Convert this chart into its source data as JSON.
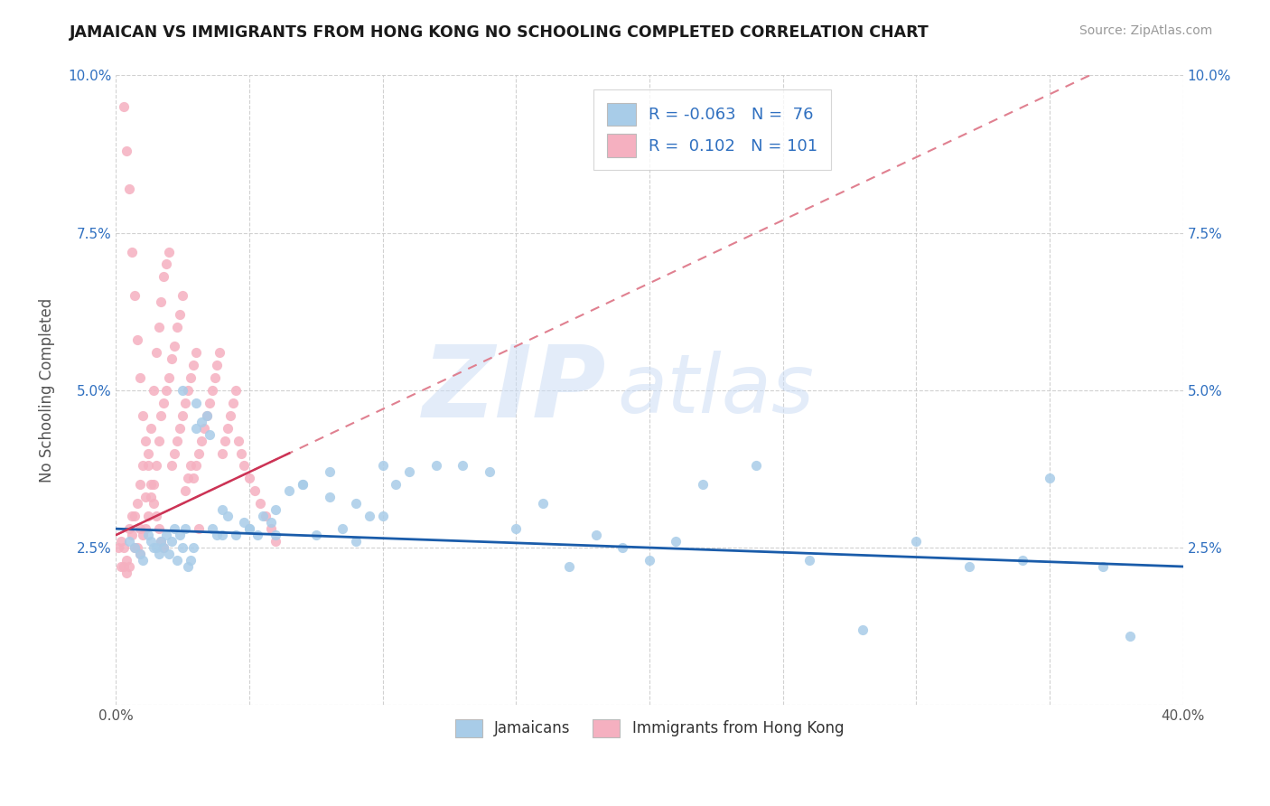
{
  "title": "JAMAICAN VS IMMIGRANTS FROM HONG KONG NO SCHOOLING COMPLETED CORRELATION CHART",
  "source": "Source: ZipAtlas.com",
  "ylabel": "No Schooling Completed",
  "xlim": [
    0.0,
    0.4
  ],
  "ylim": [
    0.0,
    0.1
  ],
  "legend_label1": "Jamaicans",
  "legend_label2": "Immigrants from Hong Kong",
  "r1": "-0.063",
  "n1": "76",
  "r2": "0.102",
  "n2": "101",
  "color_blue": "#a8cce8",
  "color_pink": "#f5b0c0",
  "line_blue": "#1a5caa",
  "line_pink": "#cc3355",
  "line_pink_dashed": "#e08090",
  "blue_x": [
    0.005,
    0.007,
    0.009,
    0.01,
    0.012,
    0.013,
    0.014,
    0.015,
    0.016,
    0.017,
    0.018,
    0.019,
    0.02,
    0.021,
    0.022,
    0.023,
    0.024,
    0.025,
    0.026,
    0.027,
    0.028,
    0.029,
    0.03,
    0.032,
    0.034,
    0.036,
    0.038,
    0.04,
    0.042,
    0.045,
    0.048,
    0.05,
    0.053,
    0.055,
    0.058,
    0.06,
    0.065,
    0.07,
    0.075,
    0.08,
    0.085,
    0.09,
    0.095,
    0.1,
    0.105,
    0.11,
    0.12,
    0.13,
    0.14,
    0.15,
    0.16,
    0.17,
    0.18,
    0.19,
    0.2,
    0.21,
    0.22,
    0.24,
    0.26,
    0.28,
    0.3,
    0.32,
    0.34,
    0.35,
    0.37,
    0.38,
    0.025,
    0.03,
    0.035,
    0.04,
    0.05,
    0.06,
    0.07,
    0.08,
    0.09,
    0.1
  ],
  "blue_y": [
    0.026,
    0.025,
    0.024,
    0.023,
    0.027,
    0.026,
    0.025,
    0.025,
    0.024,
    0.026,
    0.025,
    0.027,
    0.024,
    0.026,
    0.028,
    0.023,
    0.027,
    0.025,
    0.028,
    0.022,
    0.023,
    0.025,
    0.048,
    0.045,
    0.046,
    0.028,
    0.027,
    0.027,
    0.03,
    0.027,
    0.029,
    0.028,
    0.027,
    0.03,
    0.029,
    0.027,
    0.034,
    0.035,
    0.027,
    0.033,
    0.028,
    0.032,
    0.03,
    0.038,
    0.035,
    0.037,
    0.038,
    0.038,
    0.037,
    0.028,
    0.032,
    0.022,
    0.027,
    0.025,
    0.023,
    0.026,
    0.035,
    0.038,
    0.023,
    0.012,
    0.026,
    0.022,
    0.023,
    0.036,
    0.022,
    0.011,
    0.05,
    0.044,
    0.043,
    0.031,
    0.028,
    0.031,
    0.035,
    0.037,
    0.026,
    0.03
  ],
  "pink_x": [
    0.001,
    0.002,
    0.002,
    0.003,
    0.003,
    0.004,
    0.004,
    0.005,
    0.005,
    0.006,
    0.006,
    0.007,
    0.007,
    0.008,
    0.008,
    0.009,
    0.009,
    0.009,
    0.01,
    0.01,
    0.011,
    0.011,
    0.012,
    0.012,
    0.013,
    0.013,
    0.014,
    0.014,
    0.015,
    0.015,
    0.016,
    0.016,
    0.017,
    0.017,
    0.018,
    0.018,
    0.019,
    0.019,
    0.02,
    0.02,
    0.021,
    0.021,
    0.022,
    0.022,
    0.023,
    0.023,
    0.024,
    0.024,
    0.025,
    0.025,
    0.026,
    0.026,
    0.027,
    0.027,
    0.028,
    0.028,
    0.029,
    0.029,
    0.03,
    0.03,
    0.031,
    0.031,
    0.032,
    0.033,
    0.034,
    0.035,
    0.036,
    0.037,
    0.038,
    0.039,
    0.04,
    0.041,
    0.042,
    0.043,
    0.044,
    0.045,
    0.046,
    0.047,
    0.048,
    0.05,
    0.052,
    0.054,
    0.056,
    0.058,
    0.06,
    0.003,
    0.004,
    0.005,
    0.006,
    0.007,
    0.008,
    0.009,
    0.01,
    0.011,
    0.012,
    0.013,
    0.014,
    0.015,
    0.016,
    0.017,
    0.018
  ],
  "pink_y": [
    0.025,
    0.026,
    0.022,
    0.025,
    0.022,
    0.023,
    0.021,
    0.028,
    0.022,
    0.03,
    0.027,
    0.03,
    0.025,
    0.032,
    0.025,
    0.035,
    0.028,
    0.024,
    0.038,
    0.027,
    0.033,
    0.028,
    0.04,
    0.03,
    0.044,
    0.033,
    0.05,
    0.035,
    0.056,
    0.038,
    0.06,
    0.042,
    0.064,
    0.046,
    0.068,
    0.048,
    0.07,
    0.05,
    0.072,
    0.052,
    0.055,
    0.038,
    0.057,
    0.04,
    0.06,
    0.042,
    0.062,
    0.044,
    0.065,
    0.046,
    0.048,
    0.034,
    0.05,
    0.036,
    0.052,
    0.038,
    0.054,
    0.036,
    0.056,
    0.038,
    0.04,
    0.028,
    0.042,
    0.044,
    0.046,
    0.048,
    0.05,
    0.052,
    0.054,
    0.056,
    0.04,
    0.042,
    0.044,
    0.046,
    0.048,
    0.05,
    0.042,
    0.04,
    0.038,
    0.036,
    0.034,
    0.032,
    0.03,
    0.028,
    0.026,
    0.095,
    0.088,
    0.082,
    0.072,
    0.065,
    0.058,
    0.052,
    0.046,
    0.042,
    0.038,
    0.035,
    0.032,
    0.03,
    0.028,
    0.026,
    0.025
  ]
}
